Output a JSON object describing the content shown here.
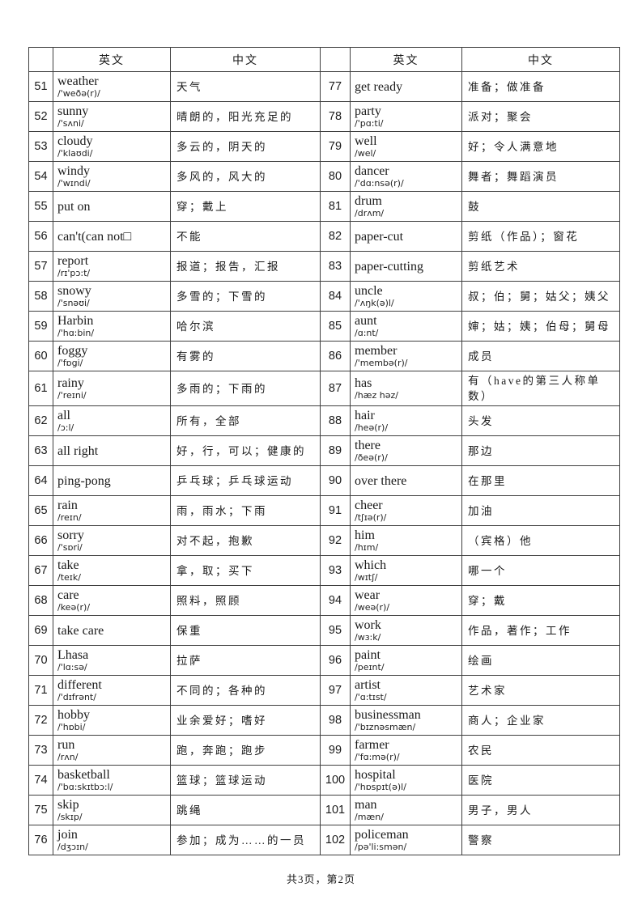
{
  "page": {
    "footer": "共3页，第2页"
  },
  "table": {
    "headers": {
      "en": "英文",
      "zh": "中文"
    },
    "rows": [
      {
        "left": {
          "num": "51",
          "word": "weather",
          "ipa": "/'weðə(r)/",
          "zh": "天气"
        },
        "right": {
          "num": "77",
          "word": "get ready",
          "ipa": "",
          "zh": "准备；做准备"
        }
      },
      {
        "left": {
          "num": "52",
          "word": "sunny",
          "ipa": "/'sʌni/",
          "zh": "晴朗的，阳光充足的"
        },
        "right": {
          "num": "78",
          "word": "party",
          "ipa": "/'pɑ:ti/",
          "zh": "派对；聚会"
        }
      },
      {
        "left": {
          "num": "53",
          "word": "cloudy",
          "ipa": "/'klaʊdi/",
          "zh": "多云的，阴天的"
        },
        "right": {
          "num": "79",
          "word": "well",
          "ipa": "/wel/",
          "zh": "好；令人满意地"
        }
      },
      {
        "left": {
          "num": "54",
          "word": "windy",
          "ipa": "/'wɪndi/",
          "zh": "多风的，风大的"
        },
        "right": {
          "num": "80",
          "word": "dancer",
          "ipa": "/'dɑ:nsə(r)/",
          "zh": "舞者；舞蹈演员"
        }
      },
      {
        "left": {
          "num": "55",
          "word": "put on",
          "ipa": "",
          "zh": "穿；戴上"
        },
        "right": {
          "num": "81",
          "word": "drum",
          "ipa": "/drʌm/",
          "zh": "鼓"
        }
      },
      {
        "left": {
          "num": "56",
          "word": "can't(can not□",
          "ipa": "",
          "zh": "不能"
        },
        "right": {
          "num": "82",
          "word": "paper-cut",
          "ipa": "",
          "zh": "剪纸（作品）；窗花"
        }
      },
      {
        "left": {
          "num": "57",
          "word": "report",
          "ipa": "/rɪ'pɔ:t/",
          "zh": "报道；报告，汇报"
        },
        "right": {
          "num": "83",
          "word": "paper-cutting",
          "ipa": "",
          "zh": "剪纸艺术"
        }
      },
      {
        "left": {
          "num": "58",
          "word": "snowy",
          "ipa": "/'snəʊi/",
          "zh": "多雪的；下雪的"
        },
        "right": {
          "num": "84",
          "word": "uncle",
          "ipa": "/'ʌŋk(ə)l/",
          "zh": "叔；伯；舅；姑父；姨父"
        }
      },
      {
        "left": {
          "num": "59",
          "word": "Harbin",
          "ipa": "/'hɑ:bin/",
          "zh": "哈尔滨"
        },
        "right": {
          "num": "85",
          "word": "aunt",
          "ipa": "/ɑ:nt/",
          "zh": "婶；姑；姨；伯母；舅母"
        }
      },
      {
        "left": {
          "num": "60",
          "word": "foggy",
          "ipa": "/'fɒgi/",
          "zh": "有雾的"
        },
        "right": {
          "num": "86",
          "word": "member",
          "ipa": "/'membə(r)/",
          "zh": "成员"
        }
      },
      {
        "left": {
          "num": "61",
          "word": "rainy",
          "ipa": "/'reɪni/",
          "zh": "多雨的；下雨的"
        },
        "right": {
          "num": "87",
          "word": "has",
          "ipa": "/hæz həz/",
          "zh": "有（have的第三人称单数）"
        }
      },
      {
        "left": {
          "num": "62",
          "word": "all",
          "ipa": "/ɔ:l/",
          "zh": "所有，全部"
        },
        "right": {
          "num": "88",
          "word": "hair",
          "ipa": "/heə(r)/",
          "zh": "头发"
        }
      },
      {
        "left": {
          "num": "63",
          "word": "all right",
          "ipa": "",
          "zh": "好，行，可以；健康的"
        },
        "right": {
          "num": "89",
          "word": "there",
          "ipa": "/ðeə(r)/",
          "zh": "那边"
        }
      },
      {
        "left": {
          "num": "64",
          "word": "ping-pong",
          "ipa": "",
          "zh": "乒乓球；乒乓球运动"
        },
        "right": {
          "num": "90",
          "word": "over there",
          "ipa": "",
          "zh": "在那里"
        }
      },
      {
        "left": {
          "num": "65",
          "word": "rain",
          "ipa": "/reɪn/",
          "zh": "雨，雨水；下雨"
        },
        "right": {
          "num": "91",
          "word": "cheer",
          "ipa": "/tʃɪə(r)/",
          "zh": "加油"
        }
      },
      {
        "left": {
          "num": "66",
          "word": "sorry",
          "ipa": "/'sɒri/",
          "zh": "对不起，抱歉"
        },
        "right": {
          "num": "92",
          "word": "him",
          "ipa": "/hɪm/",
          "zh": "（宾格）他"
        }
      },
      {
        "left": {
          "num": "67",
          "word": "take",
          "ipa": "/teɪk/",
          "zh": "拿，取；买下"
        },
        "right": {
          "num": "93",
          "word": "which",
          "ipa": "/wɪtʃ/",
          "zh": "哪一个"
        }
      },
      {
        "left": {
          "num": "68",
          "word": "care",
          "ipa": "/keə(r)/",
          "zh": "照料，照顾"
        },
        "right": {
          "num": "94",
          "word": "wear",
          "ipa": "/weə(r)/",
          "zh": "穿；戴"
        }
      },
      {
        "left": {
          "num": "69",
          "word": "take care",
          "ipa": "",
          "zh": "保重"
        },
        "right": {
          "num": "95",
          "word": "work",
          "ipa": "/wɜ:k/",
          "zh": "作品，著作；工作"
        }
      },
      {
        "left": {
          "num": "70",
          "word": "Lhasa",
          "ipa": "/'lɑ:sə/",
          "zh": "拉萨"
        },
        "right": {
          "num": "96",
          "word": "paint",
          "ipa": "/peɪnt/",
          "zh": "绘画"
        }
      },
      {
        "left": {
          "num": "71",
          "word": "different",
          "ipa": "/'dɪfrənt/",
          "zh": "不同的；各种的"
        },
        "right": {
          "num": "97",
          "word": "artist",
          "ipa": "/'ɑ:tɪst/",
          "zh": "艺术家"
        }
      },
      {
        "left": {
          "num": "72",
          "word": "hobby",
          "ipa": "/'hɒbi/",
          "zh": "业余爱好；嗜好"
        },
        "right": {
          "num": "98",
          "word": "businessman",
          "ipa": "/'bɪznəsmæn/",
          "zh": "商人；企业家"
        }
      },
      {
        "left": {
          "num": "73",
          "word": "run",
          "ipa": "/rʌn/",
          "zh": "跑，奔跑；跑步"
        },
        "right": {
          "num": "99",
          "word": "farmer",
          "ipa": "/'fɑ:mə(r)/",
          "zh": "农民"
        }
      },
      {
        "left": {
          "num": "74",
          "word": "basketball",
          "ipa": "/'bɑ:skɪtbɔ:l/",
          "zh": "篮球；篮球运动"
        },
        "right": {
          "num": "100",
          "word": "hospital",
          "ipa": "/'hɒspɪt(ə)l/",
          "zh": "医院"
        }
      },
      {
        "left": {
          "num": "75",
          "word": "skip",
          "ipa": "/skɪp/",
          "zh": "跳绳"
        },
        "right": {
          "num": "101",
          "word": "man",
          "ipa": "/mæn/",
          "zh": "男子，男人"
        }
      },
      {
        "left": {
          "num": "76",
          "word": "join",
          "ipa": "/dʒɔɪn/",
          "zh": "参加；成为……的一员"
        },
        "right": {
          "num": "102",
          "word": "policeman",
          "ipa": "/pə'li:smən/",
          "zh": "警察"
        }
      }
    ]
  }
}
